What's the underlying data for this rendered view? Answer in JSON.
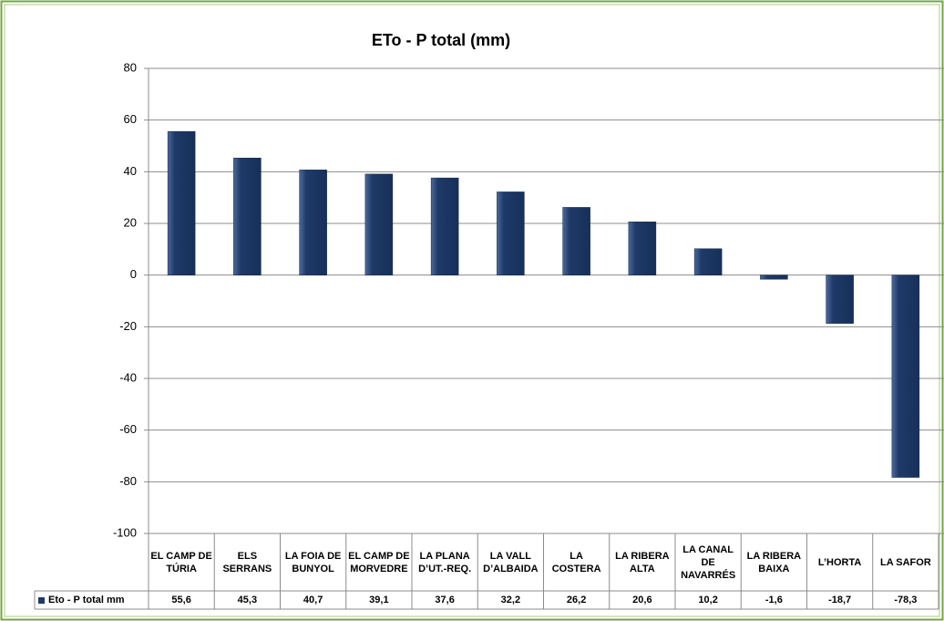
{
  "chart_data": {
    "type": "bar",
    "title": "ETo - P total (mm)",
    "categories": [
      "EL CAMP DE TÚRIA",
      "ELS SERRANS",
      "LA FOIA DE BUNYOL",
      "EL CAMP DE MORVEDRE",
      "LA PLANA D’UT.-REQ.",
      "LA VALL D’ALBAIDA",
      "LA COSTERA",
      "LA RIBERA ALTA",
      "LA CANAL DE NAVARRÉS",
      "LA RIBERA BAIXA",
      "L’HORTA",
      "LA SAFOR"
    ],
    "series": [
      {
        "name": "Eto - P total mm",
        "color": "#1f3a68",
        "values": [
          55.6,
          45.3,
          40.7,
          39.1,
          37.6,
          32.2,
          26.2,
          20.6,
          10.2,
          -1.6,
          -18.7,
          -78.3
        ],
        "value_labels": [
          "55,6",
          "45,3",
          "40,7",
          "39,1",
          "37,6",
          "32,2",
          "26,2",
          "20,6",
          "10,2",
          "-1,6",
          "-18,7",
          "-78,3"
        ]
      }
    ],
    "ylim": [
      -100,
      80
    ],
    "yticks": [
      -100,
      -80,
      -60,
      -40,
      -20,
      0,
      20,
      40,
      60,
      80
    ],
    "grid": true
  }
}
